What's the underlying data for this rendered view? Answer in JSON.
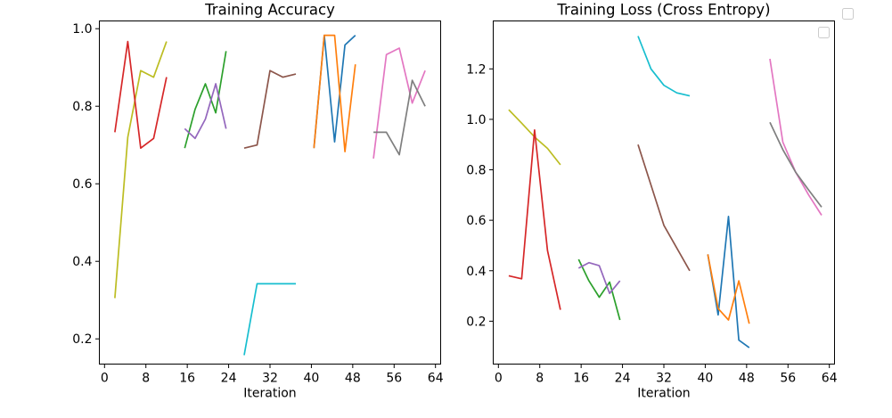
{
  "chart_data": [
    {
      "type": "line",
      "title": "Training Accuracy",
      "xlabel": "Iteration",
      "ylabel": "",
      "xlim": [
        -1,
        65
      ],
      "ylim": [
        0.135,
        1.02
      ],
      "xticks": [
        0,
        8,
        16,
        24,
        32,
        40,
        48,
        56,
        64
      ],
      "yticks": [
        0.2,
        0.4,
        0.6,
        0.8,
        1.0
      ],
      "ytick_labels": [
        "0.2",
        "0.4",
        "0.6",
        "0.8",
        "1.0"
      ],
      "legend": "none",
      "grid": false,
      "series": [
        {
          "color": "#bcbd22",
          "x": [
            2,
            4.5,
            7,
            9.5,
            12
          ],
          "y": [
            0.305,
            0.72,
            0.892,
            0.875,
            0.967
          ]
        },
        {
          "color": "#d62728",
          "x": [
            2,
            4.5,
            7,
            9.5,
            12
          ],
          "y": [
            0.733,
            0.967,
            0.692,
            0.717,
            0.875
          ]
        },
        {
          "color": "#2ca02c",
          "x": [
            15.5,
            17.5,
            19.5,
            21.5,
            23.5
          ],
          "y": [
            0.692,
            0.792,
            0.858,
            0.783,
            0.942
          ]
        },
        {
          "color": "#9467bd",
          "x": [
            15.5,
            17.5,
            19.5,
            21.5,
            23.5
          ],
          "y": [
            0.742,
            0.717,
            0.767,
            0.858,
            0.742
          ]
        },
        {
          "color": "#17becf",
          "x": [
            27,
            29.5,
            32,
            34.5,
            37
          ],
          "y": [
            0.158,
            0.342,
            0.342,
            0.342,
            0.342
          ]
        },
        {
          "color": "#8c564b",
          "x": [
            27,
            29.5,
            32,
            34.5,
            37
          ],
          "y": [
            0.692,
            0.7,
            0.892,
            0.875,
            0.883
          ]
        },
        {
          "color": "#1f77b4",
          "x": [
            40.5,
            42.5,
            44.5,
            46.5,
            48.5
          ],
          "y": [
            0.692,
            0.983,
            0.708,
            0.958,
            0.983
          ]
        },
        {
          "color": "#ff7f0e",
          "x": [
            40.5,
            42.5,
            44.5,
            46.5,
            48.5
          ],
          "y": [
            0.692,
            0.983,
            0.983,
            0.683,
            0.908
          ]
        },
        {
          "color": "#e377c2",
          "x": [
            52,
            54.5,
            57,
            59.5,
            62
          ],
          "y": [
            0.665,
            0.933,
            0.95,
            0.808,
            0.892
          ]
        },
        {
          "color": "#7f7f7f",
          "x": [
            52,
            54.5,
            57,
            59.5,
            62
          ],
          "y": [
            0.733,
            0.733,
            0.675,
            0.867,
            0.8
          ]
        }
      ]
    },
    {
      "type": "line",
      "title": "Training Loss (Cross Entropy)",
      "xlabel": "Iteration",
      "ylabel": "",
      "xlim": [
        -1,
        65
      ],
      "ylim": [
        0.03,
        1.39
      ],
      "xticks": [
        0,
        8,
        16,
        24,
        32,
        40,
        48,
        56,
        64
      ],
      "yticks": [
        0.2,
        0.4,
        0.6,
        0.8,
        1.0,
        1.2
      ],
      "ytick_labels": [
        "0.2",
        "0.4",
        "0.6",
        "0.8",
        "1.0",
        "1.2"
      ],
      "legend": "top-right (empty box)",
      "grid": false,
      "series": [
        {
          "color": "#bcbd22",
          "x": [
            2,
            4.5,
            7,
            9.5,
            12
          ],
          "y": [
            1.038,
            0.985,
            0.93,
            0.885,
            0.82
          ]
        },
        {
          "color": "#d62728",
          "x": [
            2,
            4.5,
            7,
            9.5,
            12
          ],
          "y": [
            0.38,
            0.368,
            0.958,
            0.48,
            0.245
          ]
        },
        {
          "color": "#2ca02c",
          "x": [
            15.5,
            17.5,
            19.5,
            21.5,
            23.5
          ],
          "y": [
            0.445,
            0.36,
            0.295,
            0.355,
            0.205
          ]
        },
        {
          "color": "#9467bd",
          "x": [
            15.5,
            17.5,
            19.5,
            21.5,
            23.5
          ],
          "y": [
            0.41,
            0.432,
            0.42,
            0.31,
            0.36
          ]
        },
        {
          "color": "#17becf",
          "x": [
            27,
            29.5,
            32,
            34.5,
            37
          ],
          "y": [
            1.33,
            1.2,
            1.135,
            1.105,
            1.093
          ]
        },
        {
          "color": "#8c564b",
          "x": [
            27,
            29.5,
            32,
            34.5,
            37
          ],
          "y": [
            0.9,
            0.74,
            0.58,
            0.49,
            0.4
          ]
        },
        {
          "color": "#1f77b4",
          "x": [
            40.5,
            42.5,
            44.5,
            46.5,
            48.5
          ],
          "y": [
            0.465,
            0.225,
            0.615,
            0.125,
            0.095
          ]
        },
        {
          "color": "#ff7f0e",
          "x": [
            40.5,
            42.5,
            44.5,
            46.5,
            48.5
          ],
          "y": [
            0.465,
            0.25,
            0.205,
            0.36,
            0.19
          ]
        },
        {
          "color": "#e377c2",
          "x": [
            52.5,
            55,
            57.5,
            60,
            62.5
          ],
          "y": [
            1.24,
            0.91,
            0.79,
            0.7,
            0.62
          ]
        },
        {
          "color": "#7f7f7f",
          "x": [
            52.5,
            55,
            57.5,
            60,
            62.5
          ],
          "y": [
            0.988,
            0.88,
            0.79,
            0.72,
            0.652
          ]
        }
      ]
    }
  ]
}
